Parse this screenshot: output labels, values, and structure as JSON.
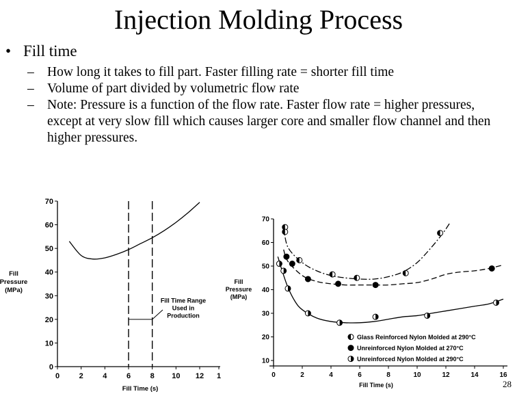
{
  "slide": {
    "title": "Injection Molding Process",
    "bullet": "Fill time",
    "bullet_marker": "•",
    "sub_marker": "–",
    "subs": [
      "How long it takes to fill part.  Faster filling rate = shorter fill time",
      "Volume of part divided by volumetric flow rate",
      "Note: Pressure is a function of the flow rate.  Faster flow rate = higher pressures, except at very slow fill which causes larger core and smaller flow  channel and then higher pressures."
    ],
    "page_number": "28"
  },
  "chart_data": [
    {
      "type": "line",
      "xlabel": "Fill Time (s)",
      "ylabel": "Fill Pressure (MPa)",
      "ylabel_lines": [
        "Fill",
        "Pressure",
        "(MPa)"
      ],
      "xlim": [
        0,
        12
      ],
      "ylim": [
        0,
        70
      ],
      "x_ticks": [
        "0",
        "2",
        "4",
        "6",
        "8",
        "10",
        "12",
        "1"
      ],
      "y_ticks": [
        "0",
        "10",
        "20",
        "30",
        "40",
        "50",
        "60",
        "70"
      ],
      "series": [
        {
          "x": [
            1,
            2,
            3,
            4,
            5,
            6,
            7,
            8,
            9,
            10,
            11,
            12
          ],
          "y": [
            53,
            47,
            45.5,
            46,
            47.5,
            49.5,
            52,
            54.5,
            57.5,
            61,
            65,
            69.5
          ]
        }
      ],
      "vlines": [
        6,
        8
      ],
      "annotation": {
        "lines": [
          "Fill Time Range",
          "Used in",
          "Production"
        ],
        "y": 20
      }
    },
    {
      "type": "scatter",
      "xlabel": "Fill Time (s)",
      "ylabel": "Fill Pressure (MPa)",
      "ylabel_lines": [
        "Fill",
        "Pressure",
        "(MPa)"
      ],
      "xlim": [
        0,
        16
      ],
      "ylim": [
        10,
        70
      ],
      "x_ticks": [
        "0",
        "2",
        "4",
        "6",
        "8",
        "10",
        "12",
        "14",
        "16"
      ],
      "y_ticks": [
        "10",
        "20",
        "30",
        "40",
        "50",
        "60",
        "70"
      ],
      "series": [
        {
          "name": "Glass Reinforced Nylon Molded at 290°C",
          "marker": "half-left",
          "style": "dashdot",
          "points": [
            [
              0.8,
              66.5
            ],
            [
              0.8,
              64.5
            ],
            [
              1.8,
              52.5
            ],
            [
              4.1,
              46.5
            ],
            [
              5.8,
              45
            ],
            [
              9.2,
              47
            ],
            [
              11.6,
              64
            ]
          ],
          "curve": [
            [
              0.7,
              67
            ],
            [
              1,
              58
            ],
            [
              2,
              51.5
            ],
            [
              3,
              48
            ],
            [
              4,
              46
            ],
            [
              5,
              45
            ],
            [
              6,
              44.5
            ],
            [
              7,
              44.5
            ],
            [
              8,
              45.5
            ],
            [
              9,
              47.5
            ],
            [
              10,
              51.5
            ],
            [
              11,
              58
            ],
            [
              11.8,
              64
            ],
            [
              12.3,
              68.5
            ]
          ]
        },
        {
          "name": "Unreinforced Nylon Molded at 270°C",
          "marker": "filled",
          "style": "dashed",
          "points": [
            [
              0.9,
              54
            ],
            [
              1.3,
              51
            ],
            [
              2.4,
              44.5
            ],
            [
              4.5,
              42.5
            ],
            [
              7.1,
              42
            ],
            [
              15.2,
              49
            ]
          ],
          "curve": [
            [
              0.7,
              57
            ],
            [
              1,
              52
            ],
            [
              2,
              46
            ],
            [
              3,
              43.5
            ],
            [
              4,
              42.5
            ],
            [
              5,
              42
            ],
            [
              6,
              42
            ],
            [
              7,
              42
            ],
            [
              8,
              42
            ],
            [
              9,
              42.5
            ],
            [
              10,
              43
            ],
            [
              11,
              44.5
            ],
            [
              12,
              46.5
            ],
            [
              13,
              47.5
            ],
            [
              14,
              48
            ],
            [
              15,
              49
            ],
            [
              16,
              50.5
            ]
          ]
        },
        {
          "name": "Unreinforced Nylon Molded at 290°C",
          "marker": "half-right",
          "style": "solid",
          "points": [
            [
              0.4,
              51
            ],
            [
              0.7,
              48
            ],
            [
              1.0,
              40.5
            ],
            [
              2.4,
              30
            ],
            [
              4.6,
              26
            ],
            [
              7.1,
              28.5
            ],
            [
              10.7,
              29
            ],
            [
              15.5,
              34.5
            ]
          ],
          "curve": [
            [
              0.3,
              54
            ],
            [
              0.6,
              48
            ],
            [
              1,
              41
            ],
            [
              1.5,
              35
            ],
            [
              2,
              31.5
            ],
            [
              3,
              28
            ],
            [
              4,
              26.5
            ],
            [
              5,
              26
            ],
            [
              6,
              26
            ],
            [
              7,
              26.5
            ],
            [
              8,
              27.5
            ],
            [
              9,
              28.5
            ],
            [
              10,
              29
            ],
            [
              11,
              30
            ],
            [
              12,
              31
            ],
            [
              13,
              32
            ],
            [
              14,
              33
            ],
            [
              15,
              34
            ],
            [
              16,
              36
            ]
          ]
        }
      ]
    }
  ]
}
